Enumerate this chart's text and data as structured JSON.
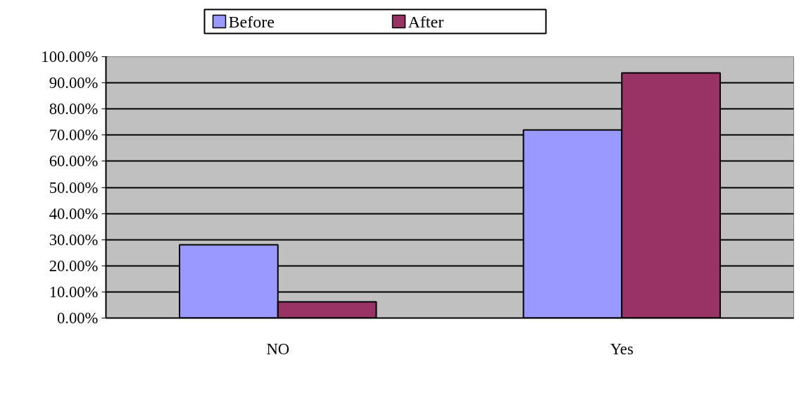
{
  "chart_data": {
    "type": "bar",
    "categories": [
      "NO",
      "Yes"
    ],
    "series": [
      {
        "name": "Before",
        "color": "#9999ff",
        "values": [
          28.0,
          72.0
        ]
      },
      {
        "name": "After",
        "color": "#993366",
        "values": [
          6.2,
          93.8
        ]
      }
    ],
    "ylim": [
      0,
      100
    ],
    "yticks": [
      {
        "value": 0,
        "label": "0.00%"
      },
      {
        "value": 10,
        "label": "10.00%"
      },
      {
        "value": 20,
        "label": "20.00%"
      },
      {
        "value": 30,
        "label": "30.00%"
      },
      {
        "value": 40,
        "label": "40.00%"
      },
      {
        "value": 50,
        "label": "50.00%"
      },
      {
        "value": 60,
        "label": "60.00%"
      },
      {
        "value": 70,
        "label": "70.00%"
      },
      {
        "value": 80,
        "label": "80.00%"
      },
      {
        "value": 90,
        "label": "90.00%"
      },
      {
        "value": 100,
        "label": "100.00%"
      }
    ],
    "grid": "y",
    "legend": "top"
  }
}
